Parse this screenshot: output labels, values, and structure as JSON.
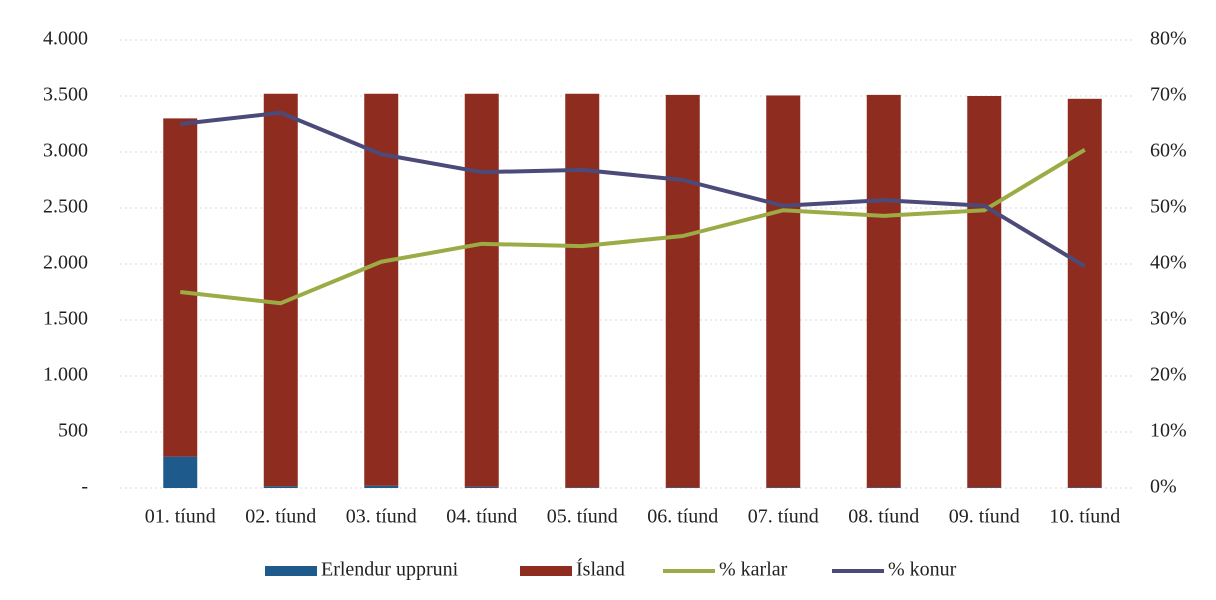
{
  "chart_data": {
    "type": "bar",
    "stacked": true,
    "grid": true,
    "categories": [
      "01. tíund",
      "02. tíund",
      "03. tíund",
      "04. tíund",
      "05. tíund",
      "06. tíund",
      "07. tíund",
      "08. tíund",
      "09. tíund",
      "10. tíund"
    ],
    "series": [
      {
        "name": "Erlendur uppruni",
        "type": "bar",
        "color": "#1f5a8c",
        "values": [
          280,
          15,
          20,
          10,
          5,
          5,
          5,
          5,
          5,
          5
        ]
      },
      {
        "name": "Ísland",
        "type": "bar",
        "color": "#8e2d1f",
        "values": [
          3020,
          3505,
          3500,
          3510,
          3515,
          3505,
          3500,
          3505,
          3495,
          3470
        ]
      },
      {
        "name": "% karlar",
        "type": "line",
        "axis": "y2",
        "color": "#9cab45",
        "values": [
          35,
          33,
          40.4,
          43.6,
          43.2,
          45,
          49.6,
          48.6,
          49.6,
          60.4
        ]
      },
      {
        "name": "% konur",
        "type": "line",
        "axis": "y2",
        "color": "#4b4a78",
        "values": [
          65,
          67,
          59.6,
          56.4,
          56.8,
          55,
          50.4,
          51.4,
          50.4,
          39.6
        ]
      }
    ],
    "ylim": [
      0,
      4000
    ],
    "yticks": [
      {
        "value": 0,
        "label": "-"
      },
      500,
      {
        "value": 1000,
        "label": "1.000"
      },
      {
        "value": 1500,
        "label": "1.500"
      },
      {
        "value": 2000,
        "label": "2.000"
      },
      {
        "value": 2500,
        "label": "2.500"
      },
      {
        "value": 3000,
        "label": "3.000"
      },
      {
        "value": 3500,
        "label": "3.500"
      },
      {
        "value": 4000,
        "label": "4.000"
      }
    ],
    "y2lim": [
      0,
      80
    ],
    "y2ticks": [
      {
        "value": 0,
        "label": "0%"
      },
      {
        "value": 10,
        "label": "10%"
      },
      {
        "value": 20,
        "label": "20%"
      },
      {
        "value": 30,
        "label": "30%"
      },
      {
        "value": 40,
        "label": "40%"
      },
      {
        "value": 50,
        "label": "50%"
      },
      {
        "value": 60,
        "label": "60%"
      },
      {
        "value": 70,
        "label": "70%"
      },
      {
        "value": 80,
        "label": "80%"
      }
    ]
  }
}
